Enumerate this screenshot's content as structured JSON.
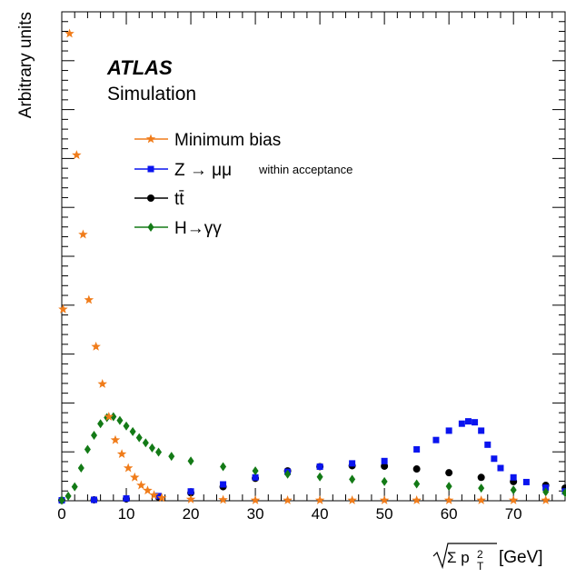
{
  "chart_data": {
    "type": "scatter",
    "title": "",
    "xlabel": "[GeV]",
    "xlabel_formula": "√Σ p_T^2",
    "ylabel": "Arbitrary units",
    "xlim": [
      0,
      78
    ],
    "ylim": [
      0,
      1.0
    ],
    "x_ticks": [
      "0",
      "10",
      "20",
      "30",
      "40",
      "50",
      "60",
      "70"
    ],
    "logo": "ATLAS",
    "logo_subtitle": "Simulation",
    "legend_position": "top-center",
    "grid": false,
    "series": [
      {
        "name": "Minimum bias",
        "color": "#f07c1a",
        "marker": "star",
        "x": [
          0.2,
          1.2,
          2.3,
          3.3,
          4.2,
          5.3,
          6.3,
          7.3,
          8.3,
          9.3,
          10.3,
          11.3,
          12.3,
          13.3,
          14.3,
          15.5,
          20,
          25,
          30,
          35,
          40,
          45,
          50,
          55,
          60,
          65,
          70,
          75
        ],
        "y": [
          0.41,
          1.0,
          0.74,
          0.57,
          0.43,
          0.33,
          0.25,
          0.18,
          0.13,
          0.1,
          0.07,
          0.05,
          0.033,
          0.022,
          0.012,
          0.006,
          0.003,
          0.002,
          0.001,
          0.001,
          0.001,
          0.001,
          0.001,
          0.001,
          0.001,
          0.001,
          0.001,
          0.001
        ]
      },
      {
        "name": "Z → μμ",
        "name_note": "within acceptance",
        "color": "#0a14ef",
        "marker": "square",
        "x": [
          0,
          5,
          10,
          15,
          20,
          25,
          30,
          35,
          40,
          45,
          50,
          55,
          58,
          60,
          62,
          63,
          64,
          65,
          66,
          67,
          68,
          70,
          72,
          75,
          78
        ],
        "y": [
          0.001,
          0.002,
          0.005,
          0.01,
          0.02,
          0.035,
          0.05,
          0.062,
          0.073,
          0.08,
          0.085,
          0.11,
          0.13,
          0.15,
          0.165,
          0.17,
          0.168,
          0.15,
          0.12,
          0.09,
          0.07,
          0.05,
          0.04,
          0.028,
          0.02
        ]
      },
      {
        "name": "tt̄",
        "color": "#000000",
        "marker": "circle",
        "x": [
          0,
          5,
          10,
          15,
          20,
          25,
          30,
          35,
          40,
          45,
          50,
          55,
          60,
          65,
          70,
          75,
          78
        ],
        "y": [
          0.001,
          0.002,
          0.004,
          0.008,
          0.017,
          0.03,
          0.048,
          0.064,
          0.073,
          0.075,
          0.074,
          0.068,
          0.06,
          0.05,
          0.041,
          0.033,
          0.027
        ]
      },
      {
        "name": "H→γγ",
        "color": "#137a16",
        "marker": "diamond",
        "x": [
          0,
          1,
          2,
          3,
          4,
          5,
          6,
          7,
          8,
          9,
          10,
          11,
          12,
          13,
          14,
          15,
          17,
          20,
          25,
          30,
          35,
          40,
          45,
          50,
          55,
          60,
          65,
          70,
          75,
          78
        ],
        "y": [
          0.001,
          0.01,
          0.03,
          0.07,
          0.11,
          0.14,
          0.165,
          0.178,
          0.18,
          0.172,
          0.16,
          0.148,
          0.135,
          0.124,
          0.113,
          0.104,
          0.095,
          0.085,
          0.073,
          0.064,
          0.057,
          0.051,
          0.046,
          0.041,
          0.036,
          0.031,
          0.027,
          0.023,
          0.019,
          0.017
        ]
      }
    ]
  }
}
